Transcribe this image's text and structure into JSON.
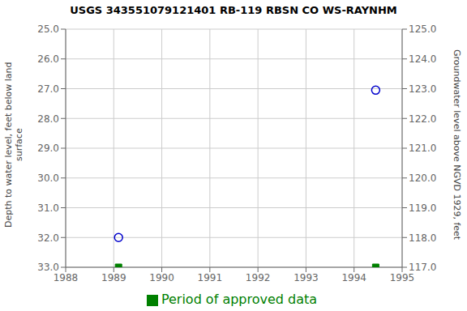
{
  "chart_data": {
    "type": "scatter",
    "title": "USGS 343551079121401 RB-119 RBSN CO WS-RAYNHM",
    "x": [
      1989.1,
      1994.45
    ],
    "series": [
      {
        "color": "#0000cc",
        "marker": "circle",
        "values": [
          32.0,
          27.05
        ]
      },
      {
        "name": "Period of approved data",
        "color": "#008000",
        "marker": "square",
        "values": [
          33.0,
          33.0
        ]
      }
    ],
    "xlim": [
      1988,
      1995
    ],
    "xticks": [
      1988,
      1989,
      1990,
      1991,
      1992,
      1993,
      1994,
      1995
    ],
    "ylim": [
      33.0,
      25.0
    ],
    "yticks": [
      {
        "value": 25,
        "label": "25.0"
      },
      {
        "value": 26,
        "label": "26.0"
      },
      {
        "value": 27,
        "label": "27.0"
      },
      {
        "value": 28,
        "label": "28.0"
      },
      {
        "value": 29,
        "label": "29.0"
      },
      {
        "value": 30,
        "label": "30.0"
      },
      {
        "value": 31,
        "label": "31.0"
      },
      {
        "value": 32,
        "label": "32.0"
      },
      {
        "value": 33,
        "label": "33.0"
      }
    ],
    "y2lim": [
      117.0,
      125.0
    ],
    "y2ticks": [
      {
        "value": 117,
        "label": "117.0"
      },
      {
        "value": 118,
        "label": "118.0"
      },
      {
        "value": 119,
        "label": "119.0"
      },
      {
        "value": 120,
        "label": "120.0"
      },
      {
        "value": 121,
        "label": "121.0"
      },
      {
        "value": 122,
        "label": "122.0"
      },
      {
        "value": 123,
        "label": "123.0"
      },
      {
        "value": 124,
        "label": "124.0"
      },
      {
        "value": 125,
        "label": "125.0"
      }
    ],
    "ylabel": "Depth to water level, feet below land\nsurface",
    "y2label": "Groundwater level above NGVD 1929, feet",
    "grid": true,
    "legend": "bottom"
  }
}
